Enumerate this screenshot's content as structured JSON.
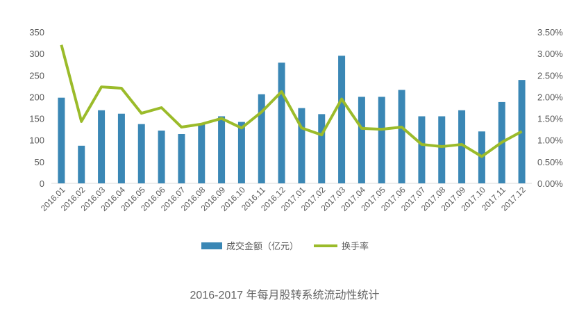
{
  "chart_data": {
    "type": "bar+line",
    "title": "2016-2017 年每月股转系统流动性统计",
    "categories": [
      "2016.01",
      "2016.02",
      "2016.03",
      "2016.04",
      "2016.05",
      "2016.06",
      "2016.07",
      "2016.08",
      "2016.09",
      "2016.10",
      "2016.11",
      "2016.12",
      "2017.01",
      "2017.02",
      "2017.03",
      "2017.04",
      "2017.05",
      "2017.06",
      "2017.07",
      "2017.08",
      "2017.09",
      "2017.10",
      "2017.11",
      "2017.12"
    ],
    "series": [
      {
        "name": "成交金额（亿元）",
        "type": "bar",
        "axis": "left",
        "color": "#3a87b5",
        "values": [
          198,
          87,
          169,
          161,
          137,
          122,
          114,
          137,
          155,
          142,
          206,
          279,
          174,
          160,
          295,
          200,
          200,
          216,
          155,
          155,
          169,
          120,
          188,
          239
        ]
      },
      {
        "name": "换手率",
        "type": "line",
        "axis": "right",
        "color": "#9bbb2a",
        "values": [
          3.2,
          1.43,
          2.23,
          2.2,
          1.62,
          1.75,
          1.3,
          1.37,
          1.5,
          1.28,
          1.65,
          2.12,
          1.28,
          1.12,
          1.95,
          1.27,
          1.25,
          1.3,
          0.9,
          0.85,
          0.9,
          0.62,
          0.95,
          1.2
        ]
      }
    ],
    "y_left": {
      "range": [
        0,
        350
      ],
      "ticks": [
        "0",
        "50",
        "100",
        "150",
        "200",
        "250",
        "300",
        "350"
      ]
    },
    "y_right": {
      "range": [
        0,
        3.5
      ],
      "unit": "%",
      "ticks": [
        "0.00%",
        "0.50%",
        "1.00%",
        "1.50%",
        "2.00%",
        "2.50%",
        "3.00%",
        "3.50%"
      ]
    },
    "grid": false,
    "legend": "bottom"
  }
}
